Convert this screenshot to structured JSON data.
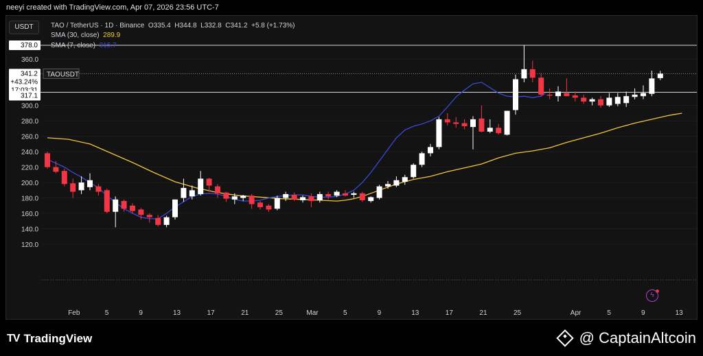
{
  "header": {
    "title": "neeyi created with TradingView.com, Apr 07, 2026 23:56 UTC-7"
  },
  "toolbar": {
    "currency_button": "USDT"
  },
  "legend": {
    "symbol": "TAO / TetherUS · 1D · Binance",
    "o_label": "O",
    "o_value": "335.4",
    "h_label": "H",
    "h_value": "344.8",
    "l_label": "L",
    "l_value": "332.8",
    "c_label": "C",
    "c_value": "341.2",
    "change": "+5.8 (+1.73%)",
    "sma30_label": "SMA (30, close)",
    "sma30_value": "289.9",
    "sma7_label": "SMA (7, close)",
    "sma7_value": "315.7"
  },
  "price_tags": {
    "level_high": "378.0",
    "last_price": "341.2",
    "last_change": "+43.24%",
    "countdown": "17:03:31",
    "level_low": "317.1",
    "symbol_tag": "TAOUSDT"
  },
  "colors": {
    "up": "#ffffff",
    "down": "#f23645",
    "sma30": "#f0c83c",
    "sma7": "#3a49d8",
    "background": "#131313"
  },
  "footer": {
    "brand_left": "TradingView",
    "brand_right": "CaptainAltcoin"
  },
  "icons": {
    "left": "tradingview-logo-icon",
    "right": "captainaltcoin-logo-icon",
    "chart": "lightning-icon"
  },
  "chart_data": {
    "type": "candlestick",
    "symbol": "TAO / TetherUS",
    "timeframe": "1D",
    "exchange": "Binance",
    "yticks": [
      120,
      140,
      160,
      180,
      200,
      220,
      240,
      260,
      280,
      300,
      360
    ],
    "ylim": [
      118,
      395
    ],
    "xticks": [
      {
        "label": "Feb",
        "i": 3
      },
      {
        "label": "5",
        "i": 7
      },
      {
        "label": "9",
        "i": 11
      },
      {
        "label": "13",
        "i": 15
      },
      {
        "label": "17",
        "i": 19
      },
      {
        "label": "21",
        "i": 23
      },
      {
        "label": "25",
        "i": 27
      },
      {
        "label": "Mar",
        "i": 31
      },
      {
        "label": "5",
        "i": 35
      },
      {
        "label": "9",
        "i": 39
      },
      {
        "label": "13",
        "i": 43
      },
      {
        "label": "17",
        "i": 47
      },
      {
        "label": "21",
        "i": 51
      },
      {
        "label": "25",
        "i": 55
      },
      {
        "label": "Apr",
        "i": 62
      },
      {
        "label": "5",
        "i": 66
      },
      {
        "label": "9",
        "i": 70
      },
      {
        "label": "13",
        "i": 74
      }
    ],
    "horizontal_levels": [
      378.0,
      317.1
    ],
    "candles": [
      {
        "o": 238,
        "h": 240,
        "l": 218,
        "c": 220
      },
      {
        "o": 220,
        "h": 228,
        "l": 212,
        "c": 214
      },
      {
        "o": 215,
        "h": 218,
        "l": 195,
        "c": 198
      },
      {
        "o": 199,
        "h": 205,
        "l": 180,
        "c": 188
      },
      {
        "o": 190,
        "h": 208,
        "l": 185,
        "c": 200
      },
      {
        "o": 194,
        "h": 212,
        "l": 190,
        "c": 203
      },
      {
        "o": 195,
        "h": 198,
        "l": 183,
        "c": 188
      },
      {
        "o": 190,
        "h": 192,
        "l": 160,
        "c": 162
      },
      {
        "o": 162,
        "h": 182,
        "l": 142,
        "c": 178
      },
      {
        "o": 176,
        "h": 178,
        "l": 162,
        "c": 166
      },
      {
        "o": 170,
        "h": 173,
        "l": 160,
        "c": 163
      },
      {
        "o": 165,
        "h": 167,
        "l": 152,
        "c": 158
      },
      {
        "o": 158,
        "h": 160,
        "l": 148,
        "c": 155
      },
      {
        "o": 154,
        "h": 158,
        "l": 143,
        "c": 145
      },
      {
        "o": 145,
        "h": 157,
        "l": 142,
        "c": 155
      },
      {
        "o": 155,
        "h": 178,
        "l": 152,
        "c": 178
      },
      {
        "o": 180,
        "h": 205,
        "l": 175,
        "c": 193
      },
      {
        "o": 182,
        "h": 196,
        "l": 178,
        "c": 190
      },
      {
        "o": 185,
        "h": 215,
        "l": 183,
        "c": 205
      },
      {
        "o": 205,
        "h": 206,
        "l": 188,
        "c": 196
      },
      {
        "o": 195,
        "h": 198,
        "l": 180,
        "c": 186
      },
      {
        "o": 187,
        "h": 188,
        "l": 175,
        "c": 179
      },
      {
        "o": 178,
        "h": 186,
        "l": 172,
        "c": 182
      },
      {
        "o": 180,
        "h": 184,
        "l": 176,
        "c": 183
      },
      {
        "o": 183,
        "h": 185,
        "l": 166,
        "c": 172
      },
      {
        "o": 174,
        "h": 176,
        "l": 165,
        "c": 168
      },
      {
        "o": 170,
        "h": 172,
        "l": 162,
        "c": 165
      },
      {
        "o": 166,
        "h": 183,
        "l": 164,
        "c": 180
      },
      {
        "o": 180,
        "h": 188,
        "l": 176,
        "c": 185
      },
      {
        "o": 184,
        "h": 187,
        "l": 176,
        "c": 178
      },
      {
        "o": 177,
        "h": 183,
        "l": 174,
        "c": 181
      },
      {
        "o": 182,
        "h": 186,
        "l": 168,
        "c": 176
      },
      {
        "o": 177,
        "h": 188,
        "l": 174,
        "c": 185
      },
      {
        "o": 185,
        "h": 188,
        "l": 178,
        "c": 182
      },
      {
        "o": 183,
        "h": 190,
        "l": 181,
        "c": 188
      },
      {
        "o": 186,
        "h": 190,
        "l": 182,
        "c": 183
      },
      {
        "o": 184,
        "h": 188,
        "l": 180,
        "c": 186
      },
      {
        "o": 186,
        "h": 188,
        "l": 175,
        "c": 177
      },
      {
        "o": 176,
        "h": 182,
        "l": 174,
        "c": 181
      },
      {
        "o": 180,
        "h": 197,
        "l": 178,
        "c": 195
      },
      {
        "o": 195,
        "h": 202,
        "l": 192,
        "c": 198
      },
      {
        "o": 196,
        "h": 208,
        "l": 194,
        "c": 203
      },
      {
        "o": 201,
        "h": 210,
        "l": 197,
        "c": 207
      },
      {
        "o": 207,
        "h": 225,
        "l": 205,
        "c": 223
      },
      {
        "o": 223,
        "h": 240,
        "l": 220,
        "c": 238
      },
      {
        "o": 238,
        "h": 250,
        "l": 234,
        "c": 246
      },
      {
        "o": 246,
        "h": 285,
        "l": 243,
        "c": 282
      },
      {
        "o": 282,
        "h": 290,
        "l": 274,
        "c": 278
      },
      {
        "o": 278,
        "h": 285,
        "l": 271,
        "c": 276
      },
      {
        "o": 277,
        "h": 282,
        "l": 269,
        "c": 273
      },
      {
        "o": 272,
        "h": 286,
        "l": 243,
        "c": 282
      },
      {
        "o": 283,
        "h": 300,
        "l": 265,
        "c": 266
      },
      {
        "o": 266,
        "h": 282,
        "l": 264,
        "c": 271
      },
      {
        "o": 271,
        "h": 276,
        "l": 262,
        "c": 264
      },
      {
        "o": 262,
        "h": 293,
        "l": 261,
        "c": 293
      },
      {
        "o": 294,
        "h": 340,
        "l": 288,
        "c": 334
      },
      {
        "o": 335,
        "h": 378,
        "l": 330,
        "c": 347
      },
      {
        "o": 347,
        "h": 358,
        "l": 330,
        "c": 336
      },
      {
        "o": 336,
        "h": 342,
        "l": 312,
        "c": 314
      },
      {
        "o": 314,
        "h": 322,
        "l": 308,
        "c": 313
      },
      {
        "o": 312,
        "h": 325,
        "l": 305,
        "c": 318
      },
      {
        "o": 316,
        "h": 335,
        "l": 312,
        "c": 312
      },
      {
        "o": 313,
        "h": 318,
        "l": 305,
        "c": 310
      },
      {
        "o": 310,
        "h": 314,
        "l": 302,
        "c": 305
      },
      {
        "o": 305,
        "h": 310,
        "l": 300,
        "c": 308
      },
      {
        "o": 308,
        "h": 312,
        "l": 297,
        "c": 300
      },
      {
        "o": 300,
        "h": 316,
        "l": 298,
        "c": 310
      },
      {
        "o": 302,
        "h": 316,
        "l": 299,
        "c": 311
      },
      {
        "o": 303,
        "h": 318,
        "l": 298,
        "c": 312
      },
      {
        "o": 311,
        "h": 322,
        "l": 308,
        "c": 314
      },
      {
        "o": 312,
        "h": 326,
        "l": 308,
        "c": 316
      },
      {
        "o": 315,
        "h": 345,
        "l": 312,
        "c": 335
      },
      {
        "o": 335.4,
        "h": 344.8,
        "l": 332.8,
        "c": 341.2
      }
    ],
    "sma30": [
      [
        0,
        258
      ],
      [
        5,
        256
      ],
      [
        10,
        250
      ],
      [
        15,
        238
      ],
      [
        20,
        226
      ],
      [
        25,
        213
      ],
      [
        30,
        201
      ],
      [
        35,
        193
      ],
      [
        40,
        187
      ],
      [
        45,
        183
      ],
      [
        50,
        181
      ],
      [
        55,
        179
      ],
      [
        60,
        178
      ],
      [
        64,
        177
      ],
      [
        68,
        176
      ],
      [
        70,
        177
      ],
      [
        72,
        179
      ],
      [
        74,
        182
      ],
      [
        78,
        190
      ],
      [
        82,
        198
      ],
      [
        86,
        204
      ],
      [
        90,
        208
      ],
      [
        94,
        214
      ],
      [
        98,
        219
      ],
      [
        102,
        224
      ],
      [
        106,
        232
      ],
      [
        110,
        238
      ],
      [
        114,
        241
      ],
      [
        118,
        245
      ],
      [
        122,
        252
      ],
      [
        126,
        258
      ],
      [
        130,
        264
      ],
      [
        134,
        271
      ],
      [
        138,
        277
      ],
      [
        142,
        282
      ],
      [
        146,
        287
      ],
      [
        149.1,
        289.9
      ]
    ],
    "sma7": [
      [
        0,
        230
      ],
      [
        2,
        225
      ],
      [
        4,
        220
      ],
      [
        6,
        213
      ],
      [
        8,
        207
      ],
      [
        10,
        200
      ],
      [
        12,
        193
      ],
      [
        14,
        183
      ],
      [
        16,
        174
      ],
      [
        18,
        166
      ],
      [
        20,
        160
      ],
      [
        22,
        155
      ],
      [
        24,
        153
      ],
      [
        26,
        153
      ],
      [
        28,
        160
      ],
      [
        30,
        168
      ],
      [
        32,
        175
      ],
      [
        34,
        182
      ],
      [
        36,
        185
      ],
      [
        38,
        186
      ],
      [
        40,
        185
      ],
      [
        42,
        182
      ],
      [
        44,
        178
      ],
      [
        46,
        176
      ],
      [
        48,
        176
      ],
      [
        50,
        177
      ],
      [
        52,
        180
      ],
      [
        54,
        182
      ],
      [
        56,
        183
      ],
      [
        58,
        184
      ],
      [
        60,
        184
      ],
      [
        62,
        182
      ],
      [
        64,
        181
      ],
      [
        66,
        181
      ],
      [
        68,
        182
      ],
      [
        70,
        185
      ],
      [
        72,
        190
      ],
      [
        74,
        200
      ],
      [
        76,
        213
      ],
      [
        78,
        228
      ],
      [
        80,
        243
      ],
      [
        82,
        258
      ],
      [
        84,
        268
      ],
      [
        86,
        273
      ],
      [
        88,
        276
      ],
      [
        90,
        280
      ],
      [
        92,
        286
      ],
      [
        94,
        298
      ],
      [
        96,
        311
      ],
      [
        98,
        320
      ],
      [
        100,
        328
      ],
      [
        102,
        330
      ],
      [
        104,
        323
      ],
      [
        106,
        316
      ],
      [
        108,
        312
      ],
      [
        110,
        311
      ],
      [
        112,
        312
      ],
      [
        114,
        310
      ],
      [
        116,
        312
      ],
      [
        117,
        315.7
      ]
    ]
  }
}
